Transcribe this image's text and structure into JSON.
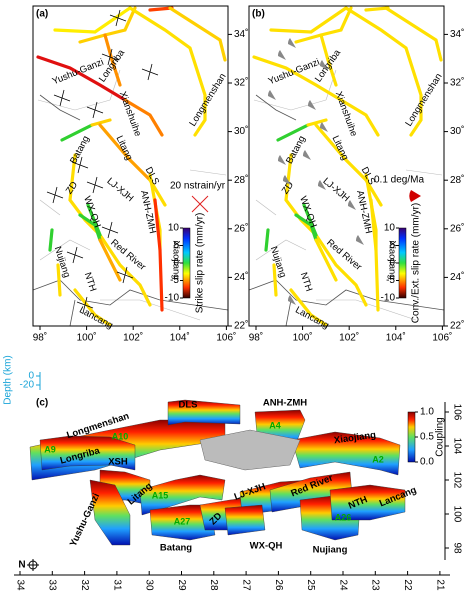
{
  "map": {
    "xticks": [
      {
        "value": 98,
        "label": "98˚"
      },
      {
        "value": 100,
        "label": "100˚"
      },
      {
        "value": 102,
        "label": "102˚"
      },
      {
        "value": 104,
        "label": "104˚"
      },
      {
        "value": 106,
        "label": "106˚"
      }
    ],
    "yticks": [
      {
        "value": 22,
        "label": "22˚"
      },
      {
        "value": 24,
        "label": "24˚"
      },
      {
        "value": 26,
        "label": "26˚"
      },
      {
        "value": 28,
        "label": "28˚"
      },
      {
        "value": 30,
        "label": "30˚"
      },
      {
        "value": 32,
        "label": "32˚"
      },
      {
        "value": 34,
        "label": "34˚"
      }
    ],
    "fault_labels": [
      "Yushu-Ganzi",
      "Longriba",
      "Longmenshan",
      "Xianshuihe",
      "Batang",
      "Litang",
      "DLS",
      "ZD",
      "LJ-XJH",
      "ANH-ZMH",
      "WX-QH",
      "Xiaojiang",
      "Red River",
      "Nujiang",
      "NTH",
      "Lancang"
    ]
  },
  "panel_a": {
    "label": "(a)",
    "scale_label": "20 nstrain/yr",
    "colorbar": {
      "title": "Strike slip rate (mm/yr)",
      "ticks": [
        -10,
        -5,
        0,
        5,
        10
      ]
    }
  },
  "panel_b": {
    "label": "(b)",
    "scale_label": "0.1 deg/Ma",
    "colorbar": {
      "title": "Conv./Ext. slip rate (mm/yr)",
      "ticks": [
        -10,
        -5,
        0,
        5,
        10
      ]
    }
  },
  "panel_c": {
    "label": "(c)",
    "depth_label": "Depth (km)",
    "depth_ticks": [
      0,
      -20
    ],
    "xticks": [
      34,
      33,
      32,
      31,
      30,
      29,
      28,
      27,
      26,
      25,
      24,
      23,
      22,
      21
    ],
    "yticks": [
      106,
      104,
      102,
      100,
      98
    ],
    "colorbar": {
      "title": "Coupling",
      "ticks": [
        {
          "value": 0,
          "label": "0.0"
        },
        0.5,
        {
          "value": 1,
          "label": "1.0"
        }
      ]
    },
    "fault_labels": [
      "Longmenshan",
      "DLS",
      "ANH-ZMH",
      "Xiaojiang",
      "Longriba",
      "XSH",
      "Litang",
      "LJ-XJH",
      "Red River",
      "NTH",
      "Lancang",
      "Yushu-Ganzi",
      "ZD",
      "Batang",
      "WX-QH",
      "Nujiang"
    ],
    "patch_labels": [
      "A10",
      "A9",
      "A4",
      "A2",
      "A15",
      "A27",
      "A26"
    ],
    "north": "N"
  }
}
